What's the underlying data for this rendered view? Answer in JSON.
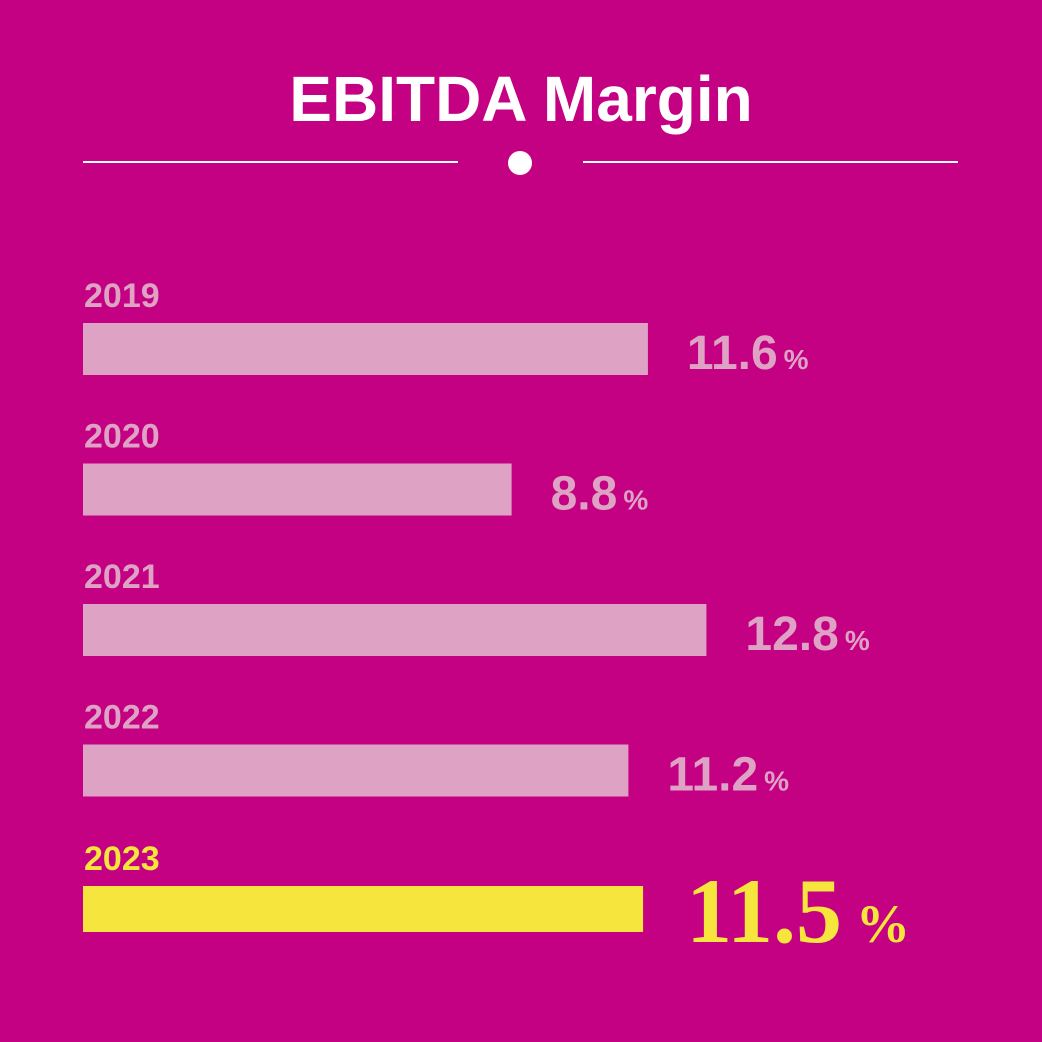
{
  "chart_data": {
    "type": "bar",
    "orientation": "horizontal",
    "title": "EBITDA Margin",
    "categories": [
      "2019",
      "2020",
      "2021",
      "2022",
      "2023"
    ],
    "values": [
      11.6,
      8.8,
      12.8,
      11.2,
      11.5
    ],
    "value_labels": [
      "11.6",
      "8.8",
      "12.8",
      "11.2",
      "11.5"
    ],
    "unit": "%",
    "highlight_category": "2023",
    "xlim": [
      0,
      14
    ],
    "grid": false,
    "legend": "none"
  },
  "colors": {
    "background": "#c40083",
    "title": "#ffffff",
    "divider": "#ffffff",
    "bar": "#dea3c4",
    "label": "#dea3c4",
    "highlight": "#f5e53c"
  }
}
